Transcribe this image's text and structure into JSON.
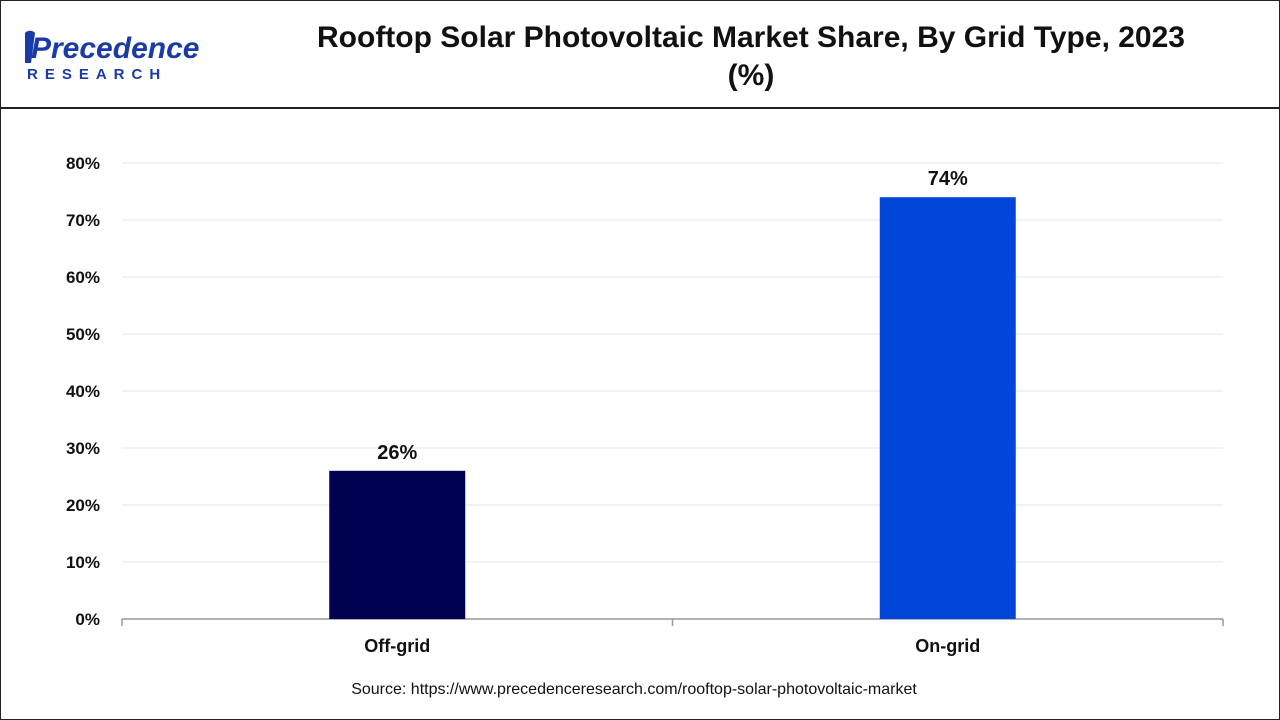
{
  "header": {
    "title": "Rooftop Solar Photovoltaic Market Share, By Grid Type, 2023 (%)",
    "logo_text_top": "Precedence",
    "logo_text_bottom": "RESEARCH"
  },
  "chart_data": {
    "type": "bar",
    "title": "Rooftop Solar Photovoltaic Market Share, By Grid Type, 2023 (%)",
    "categories": [
      "Off-grid",
      "On-grid"
    ],
    "values": [
      26,
      74
    ],
    "data_labels": [
      "26%",
      "74%"
    ],
    "colors": [
      "#000050",
      "#0047d9"
    ],
    "xlabel": "",
    "ylabel": "",
    "ylim": [
      0,
      80
    ],
    "yticks": [
      0,
      10,
      20,
      30,
      40,
      50,
      60,
      70,
      80
    ],
    "ytick_labels": [
      "0%",
      "10%",
      "20%",
      "30%",
      "40%",
      "50%",
      "60%",
      "70%",
      "80%"
    ],
    "grid": true,
    "legend": "none"
  },
  "footer": {
    "source": "Source: https://www.precedenceresearch.com/rooftop-solar-photovoltaic-market"
  },
  "colors": {
    "logo_blue": "#1a3aa8",
    "axis": "#999999",
    "grid": "#e6e6e6"
  }
}
